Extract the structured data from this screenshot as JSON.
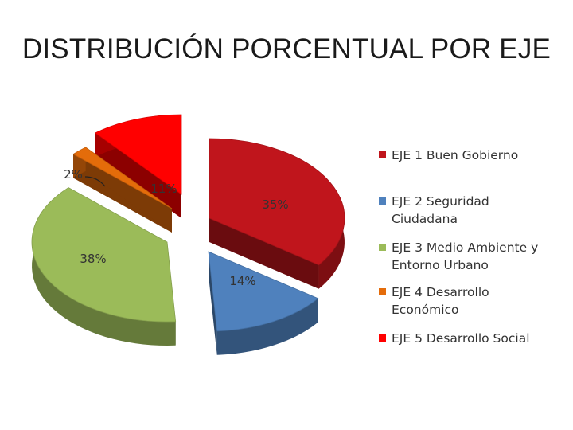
{
  "title": "DISTRIBUCIÓN PORCENTUAL POR EJE",
  "chart_data": {
    "type": "pie",
    "style": "3d-exploded",
    "legend_position": "right",
    "categories": [
      "EJE 1 Buen Gobierno",
      "EJE 2 Seguridad Ciudadana",
      "EJE 3 Medio Ambiente y Entorno Urbano",
      "EJE 4 Desarrollo Económico",
      "EJE 5 Desarrollo Social"
    ],
    "values": [
      35,
      14,
      38,
      2,
      11
    ],
    "labels": [
      "35%",
      "14%",
      "38%",
      "2%",
      "11%"
    ],
    "colors": [
      "#c0151c",
      "#4f81bd",
      "#9bbb59",
      "#e46c0a",
      "#ff0000"
    ],
    "legend_lines": [
      [
        "EJE 1 Buen Gobierno"
      ],
      [
        "EJE 2 Seguridad",
        "Ciudadana"
      ],
      [
        "EJE 3 Medio Ambiente y",
        "Entorno Urbano"
      ],
      [
        "EJE 4 Desarrollo",
        "Económico"
      ],
      [
        "EJE 5 Desarrollo Social"
      ]
    ]
  }
}
